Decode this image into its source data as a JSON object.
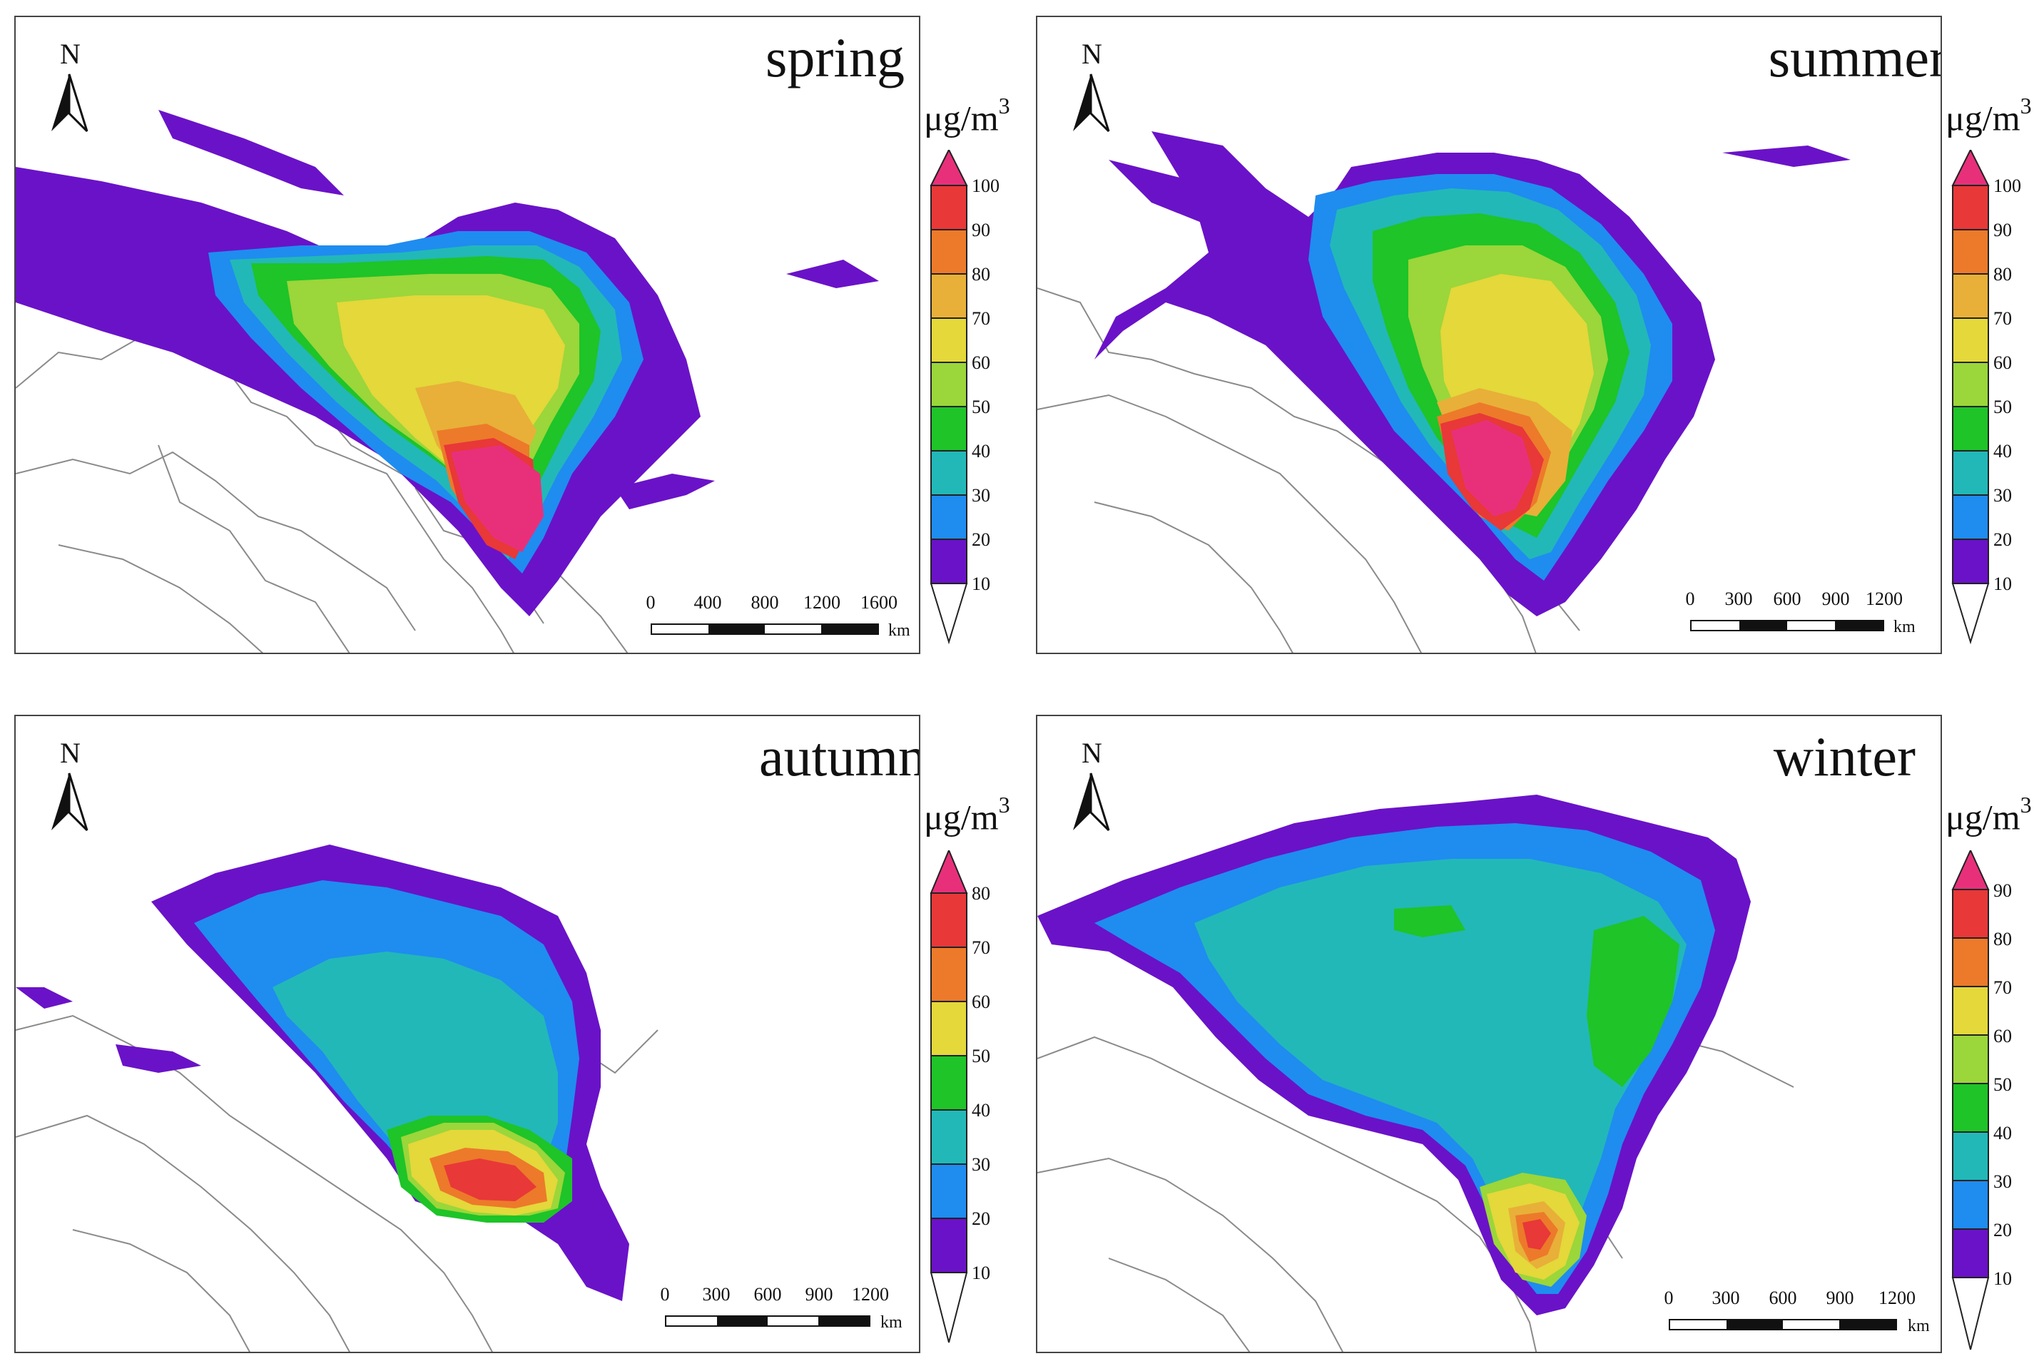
{
  "figure": {
    "north_label": "N",
    "unit": {
      "base": "μg/m",
      "exp": "3"
    },
    "scalebar_unit": "km"
  },
  "colors": {
    "10": "#ffffff",
    "20": "#6a12c8",
    "30": "#1f8cf0",
    "40": "#22b8b8",
    "50": "#1ec428",
    "60": "#9bd63a",
    "70": "#e4d83a",
    "80": "#e8b038",
    "90": "#ec7a2a",
    "100": "#e83838",
    "top": "#e8307a",
    "boundary": "#8a8a8a"
  },
  "panels": [
    {
      "id": "spring",
      "season": "spring",
      "colorbar_ticks": [
        "100",
        "90",
        "80",
        "70",
        "60",
        "50",
        "40",
        "30",
        "20",
        "10"
      ],
      "scale_ticks": [
        "0",
        "400",
        "800",
        "1200",
        "1600"
      ],
      "plume_levels": [
        20,
        30,
        40,
        50,
        60,
        70,
        80,
        90,
        100
      ]
    },
    {
      "id": "summer",
      "season": "summer",
      "colorbar_ticks": [
        "100",
        "90",
        "80",
        "70",
        "60",
        "50",
        "40",
        "30",
        "20",
        "10"
      ],
      "scale_ticks": [
        "0",
        "300",
        "600",
        "900",
        "1200"
      ],
      "plume_levels": [
        20,
        30,
        40,
        50,
        60,
        70,
        80,
        90,
        100
      ]
    },
    {
      "id": "autumn",
      "season": "autumn",
      "colorbar_ticks": [
        "80",
        "70",
        "60",
        "50",
        "40",
        "30",
        "20",
        "10"
      ],
      "scale_ticks": [
        "0",
        "300",
        "600",
        "900",
        "1200"
      ],
      "plume_levels": [
        20,
        30,
        40,
        50,
        60,
        70,
        80
      ]
    },
    {
      "id": "winter",
      "season": "winter",
      "colorbar_ticks": [
        "90",
        "80",
        "70",
        "60",
        "50",
        "40",
        "30",
        "20",
        "10"
      ],
      "scale_ticks": [
        "0",
        "300",
        "600",
        "900",
        "1200"
      ],
      "plume_levels": [
        20,
        30,
        40,
        50,
        60,
        70,
        80,
        90
      ]
    }
  ]
}
